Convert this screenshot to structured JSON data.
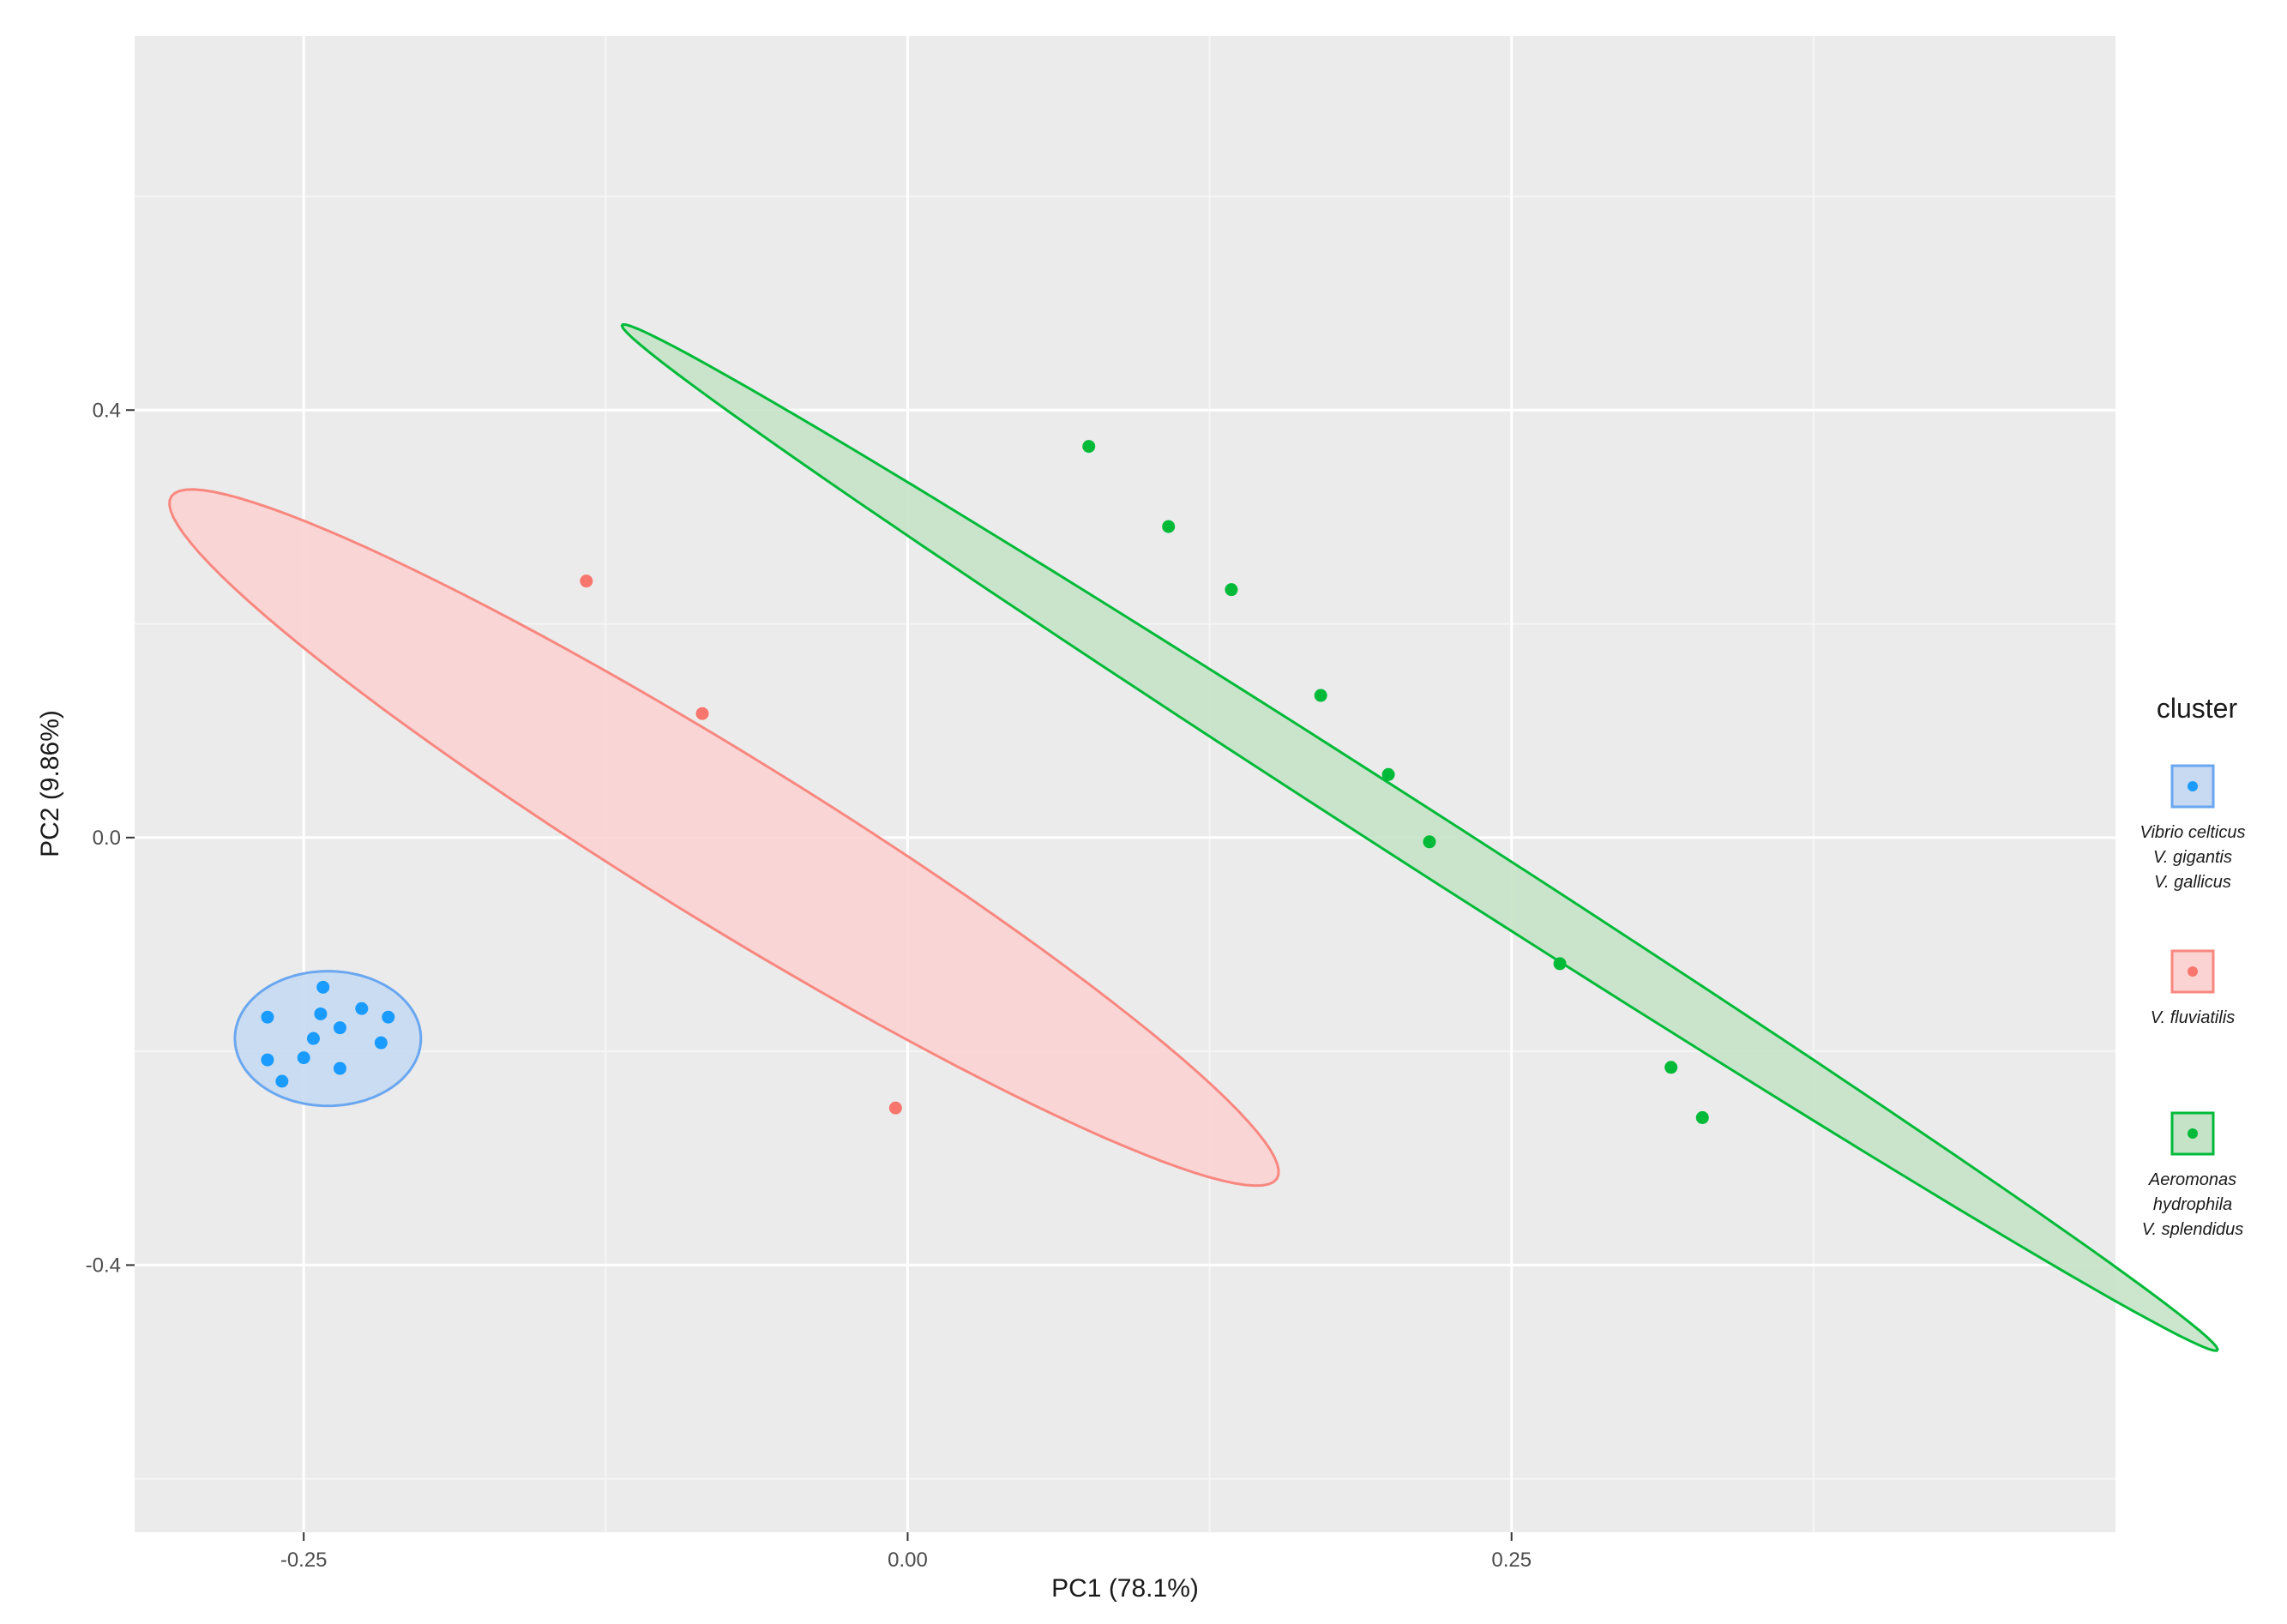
{
  "chart_data": {
    "type": "scatter",
    "xlabel": "PC1 (78.1%)",
    "ylabel": "PC2 (9.86%)",
    "xlim": [
      -0.32,
      0.5
    ],
    "ylim": [
      -0.65,
      0.75
    ],
    "x_ticks": [
      -0.25,
      0.0,
      0.25
    ],
    "x_tick_labels": [
      "-0.25",
      "0.00",
      "0.25"
    ],
    "y_ticks": [
      -0.4,
      0.0,
      0.4
    ],
    "y_tick_labels": [
      "-0.4",
      "0.0",
      "0.4"
    ],
    "grid": true,
    "legend": {
      "title": "cluster",
      "position": "right"
    },
    "colors": {
      "panel": "#ebebeb",
      "grid_major": "#ffffff",
      "grid_minor": "#f5f5f5",
      "blue": "#1a9bff",
      "red": "#f8766d",
      "green": "#00ba38"
    },
    "series": [
      {
        "name_lines": [
          "Vibrio celticus",
          "V. gigantis",
          "V. gallicus"
        ],
        "color": "#1a9bff",
        "ellipse_fill": "#c7daf2",
        "ellipse_stroke": "#6aa7f0",
        "points": [
          {
            "x": -0.265,
            "y": -0.168
          },
          {
            "x": -0.242,
            "y": -0.14
          },
          {
            "x": -0.243,
            "y": -0.165
          },
          {
            "x": -0.226,
            "y": -0.16
          },
          {
            "x": -0.215,
            "y": -0.168
          },
          {
            "x": -0.235,
            "y": -0.178
          },
          {
            "x": -0.246,
            "y": -0.188
          },
          {
            "x": -0.218,
            "y": -0.192
          },
          {
            "x": -0.265,
            "y": -0.208
          },
          {
            "x": -0.25,
            "y": -0.206
          },
          {
            "x": -0.235,
            "y": -0.216
          },
          {
            "x": -0.259,
            "y": -0.228
          }
        ],
        "ellipse": {
          "cx": -0.24,
          "cy": -0.188,
          "rx": 0.0385,
          "ry": 0.063,
          "angle_deg": 0
        }
      },
      {
        "name_lines": [
          "V. fluviatilis"
        ],
        "color": "#f8766d",
        "ellipse_fill": "#fbd3d3",
        "ellipse_stroke": "#f8877f",
        "points": [
          {
            "x": -0.133,
            "y": 0.24
          },
          {
            "x": -0.085,
            "y": 0.116
          },
          {
            "x": -0.005,
            "y": -0.253
          }
        ],
        "ellipse": {
          "cx": -0.076,
          "cy": 0.0,
          "rx": 0.395,
          "ry": 0.053,
          "angle_deg": -55.2
        }
      },
      {
        "name_lines": [
          "Aeromonas",
          "hydrophila",
          "V. splendidus"
        ],
        "color": "#00ba38",
        "ellipse_fill": "#c5e3c7",
        "ellipse_stroke": "#00ba38",
        "points": [
          {
            "x": 0.075,
            "y": 0.366
          },
          {
            "x": 0.108,
            "y": 0.291
          },
          {
            "x": 0.134,
            "y": 0.232
          },
          {
            "x": 0.171,
            "y": 0.133
          },
          {
            "x": 0.199,
            "y": 0.059
          },
          {
            "x": 0.216,
            "y": -0.004
          },
          {
            "x": 0.27,
            "y": -0.118
          },
          {
            "x": 0.316,
            "y": -0.215
          },
          {
            "x": 0.329,
            "y": -0.262
          }
        ],
        "ellipse": {
          "cx": 0.212,
          "cy": 0.0,
          "rx": 0.5825,
          "ry": 0.0185,
          "angle_deg": -55.5
        }
      }
    ]
  }
}
